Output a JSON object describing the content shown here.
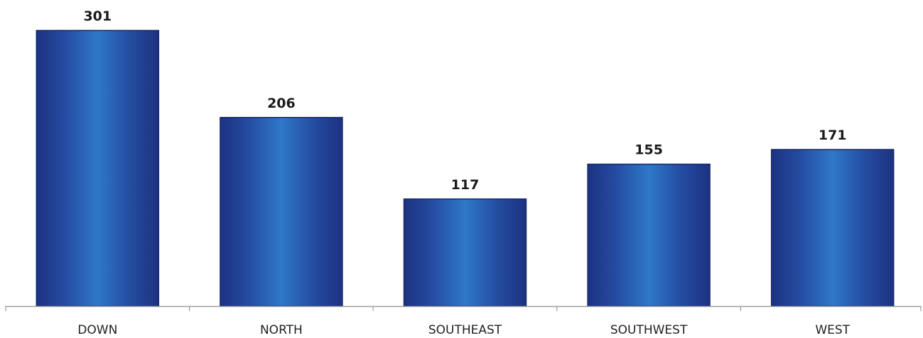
{
  "chart_data": {
    "type": "bar",
    "categories": [
      "DOWN",
      "NORTH",
      "SOUTHEAST",
      "SOUTHWEST",
      "WEST"
    ],
    "values": [
      301,
      206,
      117,
      155,
      171
    ],
    "data_labels": [
      "301",
      "206",
      "117",
      "155",
      "171"
    ],
    "title": "",
    "xlabel": "",
    "ylabel": "",
    "ylim": [
      0,
      301
    ],
    "grid": false,
    "legend": "none",
    "colors": {
      "bar_edge": "#1b2a6b",
      "bar_dark": "#1f3a8f",
      "bar_light": "#2f78c8",
      "axis": "#9a9a9a"
    }
  }
}
